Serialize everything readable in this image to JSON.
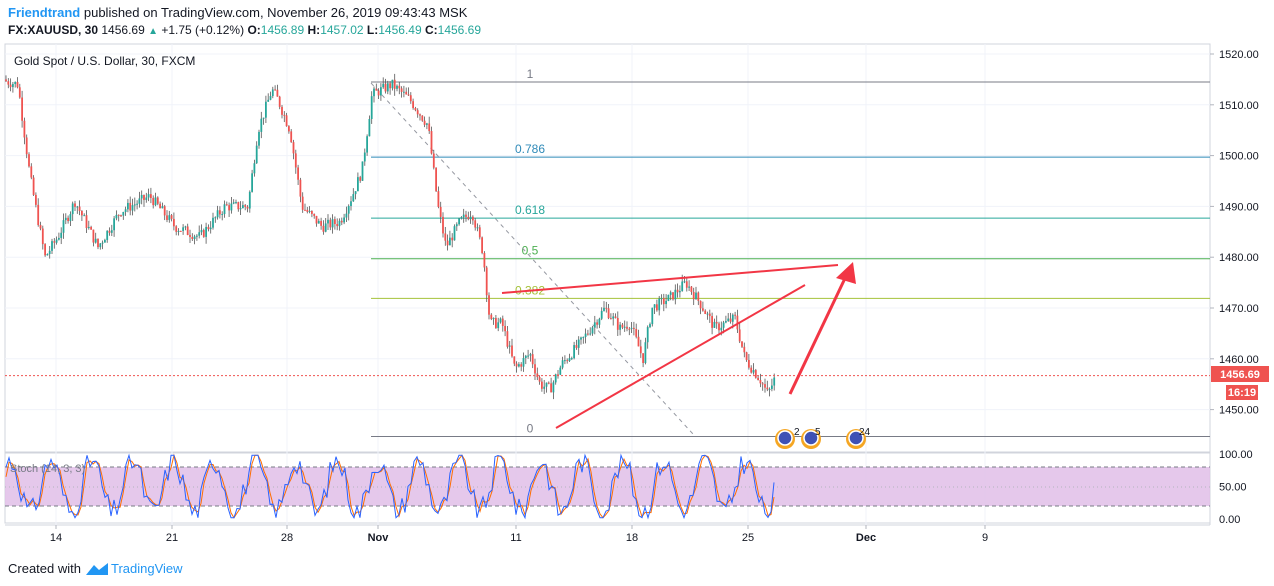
{
  "header": {
    "author": "Friendtrand",
    "published_text": "published on TradingView.com, November 26, 2019 09:43:43 MSK"
  },
  "ohlc": {
    "symbol": "FX:XAUUSD, 30",
    "last": "1456.69",
    "change": "+1.75 (+0.12%)",
    "o_label": "O:",
    "o": "1456.89",
    "h_label": "H:",
    "h": "1457.02",
    "l_label": "L:",
    "l": "1456.49",
    "c_label": "C:",
    "c": "1456.69"
  },
  "chart": {
    "title": "Gold Spot / U.S. Dollar, 30, FXCM",
    "price_tag": "1456.69",
    "timer_tag": "16:19",
    "osc_label": "Stoch (14, 3, 3)",
    "colors": {
      "up": "#26a69a",
      "down": "#ef5350",
      "wick": "#555555",
      "fib_1": "#787b86",
      "fib_786": "#2f8ab8",
      "fib_618": "#26a69a",
      "fib_05": "#4caf50",
      "fib_382": "#a5c23a",
      "fib_0": "#787b86",
      "drawing": "#f23645",
      "osc_k": "#2962ff",
      "osc_d": "#ff6d00",
      "osc_band": "#e1bee7"
    }
  },
  "events": [
    {
      "label": "2"
    },
    {
      "label": "5"
    },
    {
      "label": "24"
    }
  ],
  "chart_data": {
    "type": "candlestick",
    "title": "Gold Spot / U.S. Dollar, 30, FXCM",
    "symbol": "FX:XAUUSD",
    "interval": "30",
    "y_ticks": [
      "1520.00",
      "1510.00",
      "1500.00",
      "1490.00",
      "1480.00",
      "1470.00",
      "1460.00",
      "1450.00"
    ],
    "ylim": [
      1446,
      1523
    ],
    "x_ticks": [
      "14",
      "21",
      "28",
      "Nov",
      "11",
      "18",
      "25",
      "Dec",
      "9"
    ],
    "last_price": 1456.69,
    "path_points": [
      {
        "x": 0,
        "y": 1515
      },
      {
        "x": 18,
        "y": 1514
      },
      {
        "x": 30,
        "y": 1496
      },
      {
        "x": 45,
        "y": 1480
      },
      {
        "x": 58,
        "y": 1484
      },
      {
        "x": 75,
        "y": 1491
      },
      {
        "x": 98,
        "y": 1482
      },
      {
        "x": 120,
        "y": 1489
      },
      {
        "x": 150,
        "y": 1492
      },
      {
        "x": 175,
        "y": 1486
      },
      {
        "x": 200,
        "y": 1484
      },
      {
        "x": 225,
        "y": 1490
      },
      {
        "x": 248,
        "y": 1490
      },
      {
        "x": 258,
        "y": 1505
      },
      {
        "x": 272,
        "y": 1513
      },
      {
        "x": 278,
        "y": 1511
      },
      {
        "x": 290,
        "y": 1505
      },
      {
        "x": 302,
        "y": 1490
      },
      {
        "x": 322,
        "y": 1486
      },
      {
        "x": 340,
        "y": 1487
      },
      {
        "x": 352,
        "y": 1492
      },
      {
        "x": 362,
        "y": 1497
      },
      {
        "x": 372,
        "y": 1512
      },
      {
        "x": 392,
        "y": 1514
      },
      {
        "x": 410,
        "y": 1511
      },
      {
        "x": 428,
        "y": 1506
      },
      {
        "x": 438,
        "y": 1490
      },
      {
        "x": 446,
        "y": 1482
      },
      {
        "x": 460,
        "y": 1487
      },
      {
        "x": 472,
        "y": 1489
      },
      {
        "x": 483,
        "y": 1481
      },
      {
        "x": 490,
        "y": 1467
      },
      {
        "x": 502,
        "y": 1467
      },
      {
        "x": 515,
        "y": 1458
      },
      {
        "x": 530,
        "y": 1461
      },
      {
        "x": 540,
        "y": 1455
      },
      {
        "x": 550,
        "y": 1454
      },
      {
        "x": 562,
        "y": 1459
      },
      {
        "x": 580,
        "y": 1463
      },
      {
        "x": 605,
        "y": 1470
      },
      {
        "x": 620,
        "y": 1466
      },
      {
        "x": 630,
        "y": 1467
      },
      {
        "x": 643,
        "y": 1460
      },
      {
        "x": 652,
        "y": 1470
      },
      {
        "x": 670,
        "y": 1472
      },
      {
        "x": 686,
        "y": 1475
      },
      {
        "x": 700,
        "y": 1471
      },
      {
        "x": 715,
        "y": 1466
      },
      {
        "x": 725,
        "y": 1467
      },
      {
        "x": 735,
        "y": 1468
      },
      {
        "x": 745,
        "y": 1460
      },
      {
        "x": 760,
        "y": 1456
      },
      {
        "x": 768,
        "y": 1453
      },
      {
        "x": 776,
        "y": 1456.7
      }
    ],
    "fib_levels": [
      {
        "label": "1",
        "value": 1514.5
      },
      {
        "label": "0.786",
        "value": 1499.7
      },
      {
        "label": "0.618",
        "value": 1487.7
      },
      {
        "label": "0.5",
        "value": 1479.7
      },
      {
        "label": "0.382",
        "value": 1471.9
      },
      {
        "label": "0",
        "value": 1444.7
      }
    ],
    "oscillator": {
      "name": "Stoch (14, 3, 3)",
      "y_ticks": [
        "100.00",
        "50.00",
        "0.00"
      ],
      "upper_band": 80,
      "lower_band": 20
    }
  }
}
